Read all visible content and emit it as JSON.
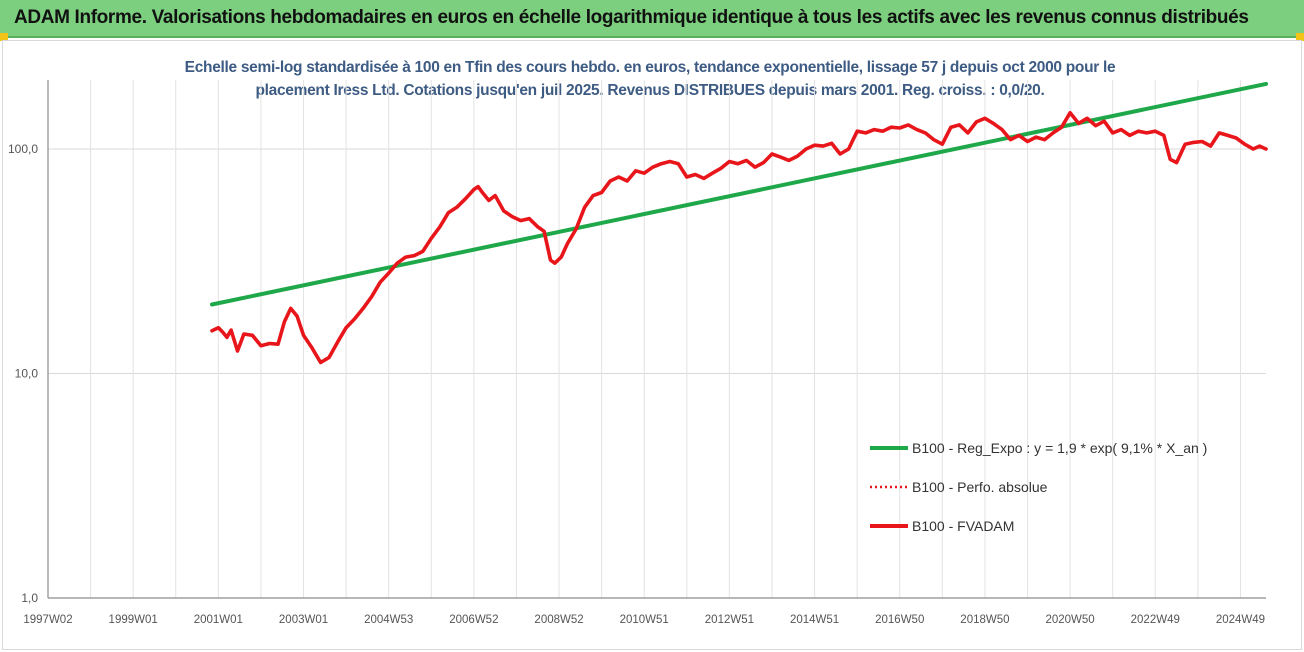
{
  "header": {
    "title": "ADAM Informe. Valorisations hebdomadaires en euros en échelle logarithmique identique à tous les actifs avec les revenus connus distribués"
  },
  "colors": {
    "header_bg": "#7ccf7e",
    "regression": "#1fa84a",
    "fvadam": "#e8161a",
    "perfo": "#e8161a",
    "subtitle": "#3d5b83",
    "corner": "#f2c318"
  },
  "chart_data": {
    "type": "line",
    "title": "Echelle semi-log standardisée à 100 en Tfin des cours hebdo. en euros, tendance exponentielle, lissage 57 j depuis oct 2000 pour le placement Iress Ltd. Cotations jusqu'en juil 2025. Revenus DISTRIBUES depuis mars 2001. Reg. croiss. : 0,0/20.",
    "title_lines": [
      "Echelle semi-log standardisée à 100 en Tfin des cours hebdo. en euros, tendance exponentielle, lissage 57 j depuis oct 2000 pour le",
      "placement Iress Ltd. Cotations jusqu'en juil 2025. Revenus DISTRIBUES depuis mars 2001. Reg. croiss. : 0,0/20."
    ],
    "y_scale": "log",
    "ylim": [
      1,
      200
    ],
    "y_ticks": [
      1,
      10,
      100
    ],
    "y_tick_labels": [
      "1,0",
      "10,0",
      "100,0"
    ],
    "x_range": [
      1997.0,
      2025.6
    ],
    "x_ticks": [
      1997.0,
      1999.0,
      2001.0,
      2003.0,
      2005.0,
      2007.0,
      2009.0,
      2011.0,
      2013.0,
      2015.0,
      2017.0,
      2019.0,
      2021.0,
      2023.0,
      2025.0
    ],
    "x_tick_labels": [
      "1997W02",
      "1999W01",
      "2001W01",
      "2003W01",
      "2004W53",
      "2006W52",
      "2008W52",
      "2010W51",
      "2012W51",
      "2014W51",
      "2016W50",
      "2018W50",
      "2020W50",
      "2022W49",
      "2024W49"
    ],
    "grid": true,
    "legend_position": "bottom-right",
    "series": [
      {
        "name": "B100 - Reg_Expo : y = 1,9 * exp( 9,1% *  X_an )",
        "style": "solid",
        "x": [
          2000.85,
          2025.6
        ],
        "y": [
          20.3,
          195
        ]
      },
      {
        "name": "B100 - Perfo. absolue",
        "style": "dotted",
        "x": [],
        "y": []
      },
      {
        "name": "B100 - FVADAM",
        "style": "solid",
        "x": [
          2000.85,
          2001.0,
          2001.1,
          2001.2,
          2001.3,
          2001.45,
          2001.6,
          2001.8,
          2002.0,
          2002.2,
          2002.4,
          2002.55,
          2002.7,
          2002.85,
          2003.0,
          2003.2,
          2003.4,
          2003.6,
          2003.8,
          2004.0,
          2004.2,
          2004.4,
          2004.6,
          2004.8,
          2005.0,
          2005.2,
          2005.4,
          2005.6,
          2005.8,
          2006.0,
          2006.2,
          2006.4,
          2006.6,
          2006.8,
          2007.0,
          2007.1,
          2007.2,
          2007.35,
          2007.5,
          2007.7,
          2007.9,
          2008.1,
          2008.3,
          2008.5,
          2008.65,
          2008.8,
          2008.9,
          2009.05,
          2009.2,
          2009.4,
          2009.6,
          2009.8,
          2010.0,
          2010.2,
          2010.4,
          2010.6,
          2010.8,
          2011.0,
          2011.2,
          2011.4,
          2011.6,
          2011.8,
          2012.0,
          2012.2,
          2012.4,
          2012.6,
          2012.8,
          2013.0,
          2013.2,
          2013.4,
          2013.6,
          2013.8,
          2014.0,
          2014.2,
          2014.4,
          2014.6,
          2014.8,
          2015.0,
          2015.2,
          2015.4,
          2015.6,
          2015.8,
          2016.0,
          2016.2,
          2016.4,
          2016.6,
          2016.8,
          2017.0,
          2017.2,
          2017.4,
          2017.6,
          2017.8,
          2018.0,
          2018.2,
          2018.4,
          2018.6,
          2018.8,
          2019.0,
          2019.2,
          2019.4,
          2019.6,
          2019.8,
          2020.0,
          2020.2,
          2020.4,
          2020.6,
          2020.8,
          2021.0,
          2021.2,
          2021.4,
          2021.6,
          2021.8,
          2022.0,
          2022.2,
          2022.4,
          2022.6,
          2022.8,
          2023.0,
          2023.2,
          2023.35,
          2023.5,
          2023.7,
          2023.9,
          2024.1,
          2024.3,
          2024.5,
          2024.7,
          2024.9,
          2025.1,
          2025.3,
          2025.45,
          2025.6
        ],
        "y": [
          15.5,
          16.0,
          15.3,
          14.5,
          15.6,
          12.6,
          15.0,
          14.8,
          13.3,
          13.6,
          13.5,
          17.0,
          19.5,
          18.0,
          14.8,
          13.0,
          11.2,
          11.8,
          13.8,
          16.0,
          17.5,
          19.5,
          22.0,
          25.5,
          28.0,
          31.0,
          33.0,
          33.5,
          35.0,
          40.0,
          45.0,
          52.0,
          55.0,
          60.0,
          66.0,
          68.0,
          64.0,
          59.0,
          62.0,
          53.0,
          50.0,
          48.0,
          49.0,
          45.0,
          43.0,
          32.0,
          31.0,
          33.0,
          38.0,
          44.0,
          55.0,
          62.0,
          64.0,
          72.0,
          75.0,
          72.0,
          80.0,
          78.0,
          83.0,
          86.0,
          88.0,
          86.0,
          75.0,
          77.0,
          74.0,
          78.0,
          82.0,
          88.0,
          86.0,
          89.0,
          83.0,
          87.0,
          95.0,
          92.0,
          89.0,
          93.0,
          100.0,
          104.0,
          103.0,
          106.0,
          95.0,
          100.0,
          120.0,
          118.0,
          122.0,
          120.0,
          125.0,
          124.0,
          128.0,
          122.0,
          118.0,
          110.0,
          105.0,
          125.0,
          128.0,
          118.0,
          132.0,
          137.0,
          130.0,
          122.0,
          110.0,
          115.0,
          108.0,
          113.0,
          110.0,
          118.0,
          125.0,
          145.0,
          130.0,
          137.0,
          127.0,
          133.0,
          118.0,
          122.0,
          115.0,
          120.0,
          118.0,
          120.0,
          115.0,
          90.0,
          87.0,
          105.0,
          107.0,
          108.0,
          103.0,
          118.0,
          115.0,
          112.0,
          105.0,
          100.0,
          103.0,
          100.0
        ]
      }
    ],
    "legend": [
      "B100 - Reg_Expo : y = 1,9 * exp( 9,1% *  X_an )",
      "B100 - Perfo. absolue",
      "B100 - FVADAM"
    ]
  }
}
